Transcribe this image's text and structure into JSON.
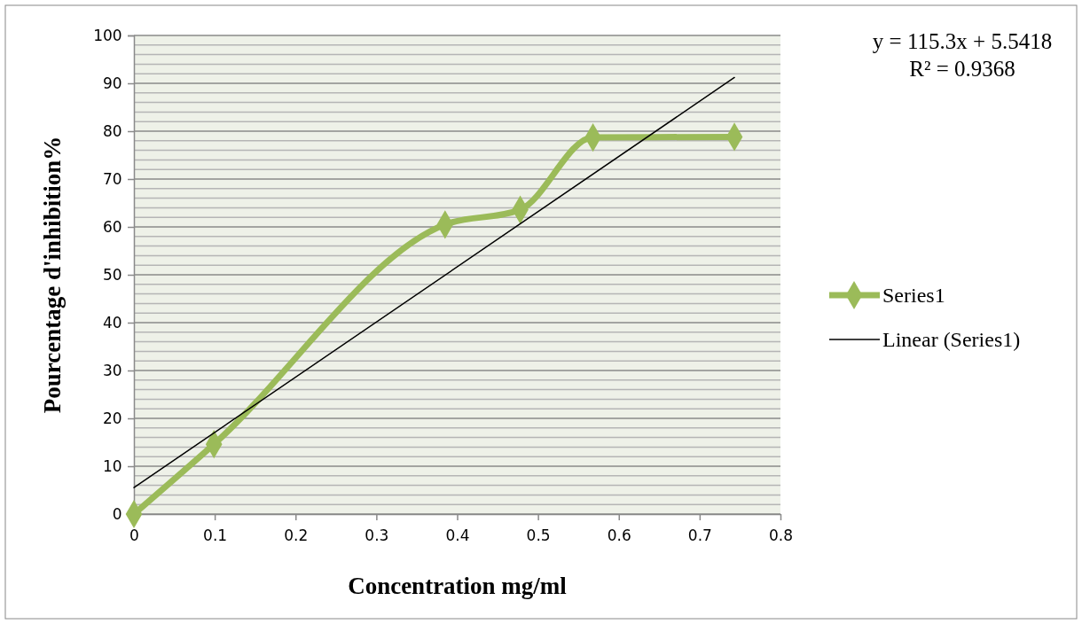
{
  "chart_data": {
    "type": "line",
    "xlabel": "Concentration mg/ml",
    "ylabel": "Pourcentage d'inhibition%",
    "xlim": [
      0,
      0.8
    ],
    "xticks": [
      0,
      0.1,
      0.2,
      0.3,
      0.4,
      0.5,
      0.6,
      0.7,
      0.8
    ],
    "ylim": [
      0,
      100
    ],
    "yticks": [
      0,
      {
        "value": 2,
        "label": null
      },
      {
        "value": 4,
        "label": null
      },
      {
        "value": 6,
        "label": null
      },
      {
        "value": 8,
        "label": null
      },
      10,
      {
        "value": 12,
        "label": null
      },
      {
        "value": 14,
        "label": null
      },
      {
        "value": 16,
        "label": null
      },
      {
        "value": 18,
        "label": null
      },
      20,
      {
        "value": 22,
        "label": null
      },
      {
        "value": 24,
        "label": null
      },
      {
        "value": 26,
        "label": null
      },
      {
        "value": 28,
        "label": null
      },
      30,
      {
        "value": 32,
        "label": null
      },
      {
        "value": 34,
        "label": null
      },
      {
        "value": 36,
        "label": null
      },
      {
        "value": 38,
        "label": null
      },
      40,
      {
        "value": 42,
        "label": null
      },
      {
        "value": 44,
        "label": null
      },
      {
        "value": 46,
        "label": null
      },
      {
        "value": 48,
        "label": null
      },
      50,
      {
        "value": 52,
        "label": null
      },
      {
        "value": 54,
        "label": null
      },
      {
        "value": 56,
        "label": null
      },
      {
        "value": 58,
        "label": null
      },
      60,
      {
        "value": 62,
        "label": null
      },
      {
        "value": 64,
        "label": null
      },
      {
        "value": 66,
        "label": null
      },
      {
        "value": 68,
        "label": null
      },
      70,
      {
        "value": 72,
        "label": null
      },
      {
        "value": 74,
        "label": null
      },
      {
        "value": 76,
        "label": null
      },
      {
        "value": 78,
        "label": null
      },
      80,
      {
        "value": 82,
        "label": null
      },
      {
        "value": 84,
        "label": null
      },
      {
        "value": 86,
        "label": null
      },
      {
        "value": 88,
        "label": null
      },
      90,
      {
        "value": 92,
        "label": null
      },
      {
        "value": 94,
        "label": null
      },
      {
        "value": 96,
        "label": null
      },
      {
        "value": 98,
        "label": null
      },
      100
    ],
    "grid": "y",
    "legend": "right",
    "series": [
      {
        "name": "Series1",
        "color": "#9bbb59",
        "marker": "diamond",
        "x": [
          0,
          0.099,
          0.385,
          0.478,
          0.568,
          0.743
        ],
        "values": [
          0,
          14.6,
          60.5,
          63.6,
          78.7,
          78.8
        ]
      },
      {
        "name": "Linear (Series1)",
        "color": "#000000",
        "marker": "none",
        "x": [
          0,
          0.743
        ],
        "values": [
          5.54,
          91.21
        ]
      }
    ],
    "annotations": [
      "y = 115.3x + 5.5418",
      "R² = 0.9368"
    ]
  }
}
